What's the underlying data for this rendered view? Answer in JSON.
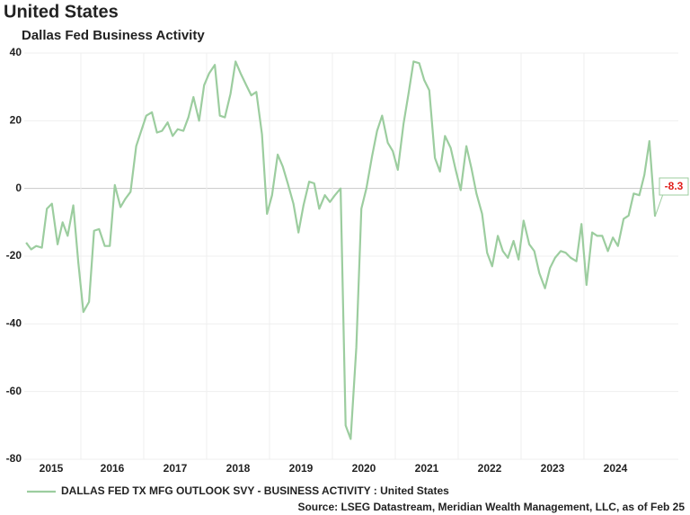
{
  "chart_data": {
    "type": "line",
    "title": "United States",
    "subtitle": "Dallas Fed Business Activity",
    "source": "Source: LSEG Datastream, Meridian Wealth Management, LLC, as of Feb 25",
    "x": [
      2015.13,
      2015.21,
      2015.29,
      2015.38,
      2015.46,
      2015.54,
      2015.63,
      2015.71,
      2015.79,
      2015.88,
      2015.96,
      2016.04,
      2016.13,
      2016.21,
      2016.29,
      2016.38,
      2016.46,
      2016.54,
      2016.63,
      2016.71,
      2016.79,
      2016.88,
      2016.96,
      2017.04,
      2017.13,
      2017.21,
      2017.29,
      2017.38,
      2017.46,
      2017.54,
      2017.63,
      2017.71,
      2017.79,
      2017.88,
      2017.96,
      2018.04,
      2018.13,
      2018.21,
      2018.29,
      2018.38,
      2018.46,
      2018.54,
      2018.63,
      2018.71,
      2018.79,
      2018.88,
      2018.96,
      2019.04,
      2019.13,
      2019.21,
      2019.29,
      2019.38,
      2019.46,
      2019.54,
      2019.63,
      2019.71,
      2019.79,
      2019.88,
      2019.96,
      2020.04,
      2020.13,
      2020.21,
      2020.29,
      2020.38,
      2020.46,
      2020.54,
      2020.63,
      2020.71,
      2020.79,
      2020.88,
      2020.96,
      2021.04,
      2021.13,
      2021.21,
      2021.29,
      2021.38,
      2021.46,
      2021.54,
      2021.63,
      2021.71,
      2021.79,
      2021.88,
      2021.96,
      2022.04,
      2022.13,
      2022.21,
      2022.29,
      2022.38,
      2022.46,
      2022.54,
      2022.63,
      2022.71,
      2022.79,
      2022.88,
      2022.96,
      2023.04,
      2023.13,
      2023.21,
      2023.29,
      2023.38,
      2023.46,
      2023.54,
      2023.63,
      2023.71,
      2023.79,
      2023.88,
      2023.96,
      2024.04,
      2024.13,
      2024.21,
      2024.29,
      2024.38,
      2024.46,
      2024.54,
      2024.63,
      2024.71,
      2024.79,
      2024.88,
      2024.96,
      2025.04,
      2025.13
    ],
    "series": [
      {
        "name": "DALLAS FED TX MFG OUTLOOK SVY - BUSINESS ACTIVITY : United States",
        "color": "#9ccd9f",
        "values": [
          -16,
          -18,
          -17,
          -17.5,
          -6,
          -4.5,
          -16.5,
          -10,
          -14,
          -5,
          -22,
          -36.5,
          -33.5,
          -12.5,
          -12,
          -17,
          -17,
          1,
          -5.5,
          -3,
          -1,
          12.5,
          17,
          21.5,
          22.5,
          16.5,
          17,
          19.5,
          15.5,
          17.5,
          17,
          21,
          27,
          20,
          30.5,
          34,
          36.5,
          21.5,
          21,
          28,
          37.5,
          34,
          30.5,
          27.5,
          28.5,
          16,
          -7.5,
          -2,
          10,
          6.5,
          1.5,
          -4.5,
          -13,
          -5,
          2,
          1.5,
          -6,
          -2,
          -4,
          -2,
          0,
          -70,
          -74,
          -47,
          -6,
          0,
          9.5,
          17,
          21.5,
          13.5,
          11,
          5.5,
          19,
          28,
          37.5,
          37,
          32,
          29,
          9,
          5,
          15.5,
          12,
          5.5,
          -0.5,
          12.5,
          6,
          -1.5,
          -7.5,
          -19,
          -23,
          -14,
          -18.5,
          -20.5,
          -15.5,
          -21,
          -9.5,
          -16.5,
          -18.5,
          -25,
          -29.5,
          -23.5,
          -20.5,
          -18.5,
          -19,
          -20.5,
          -21.5,
          -10.5,
          -28.5,
          -13,
          -14,
          -14,
          -18.5,
          -14.5,
          -17,
          -9,
          -8,
          -1.5,
          -2,
          4,
          14,
          -8.3
        ]
      }
    ],
    "xlim": [
      2015.1,
      2025.5
    ],
    "xticks": [
      2015,
      2016,
      2017,
      2018,
      2019,
      2020,
      2021,
      2022,
      2023,
      2024
    ],
    "ylim": [
      -80,
      40
    ],
    "yticks": [
      40,
      20,
      0,
      -20,
      -40,
      -60,
      -80
    ],
    "grid": true
  }
}
